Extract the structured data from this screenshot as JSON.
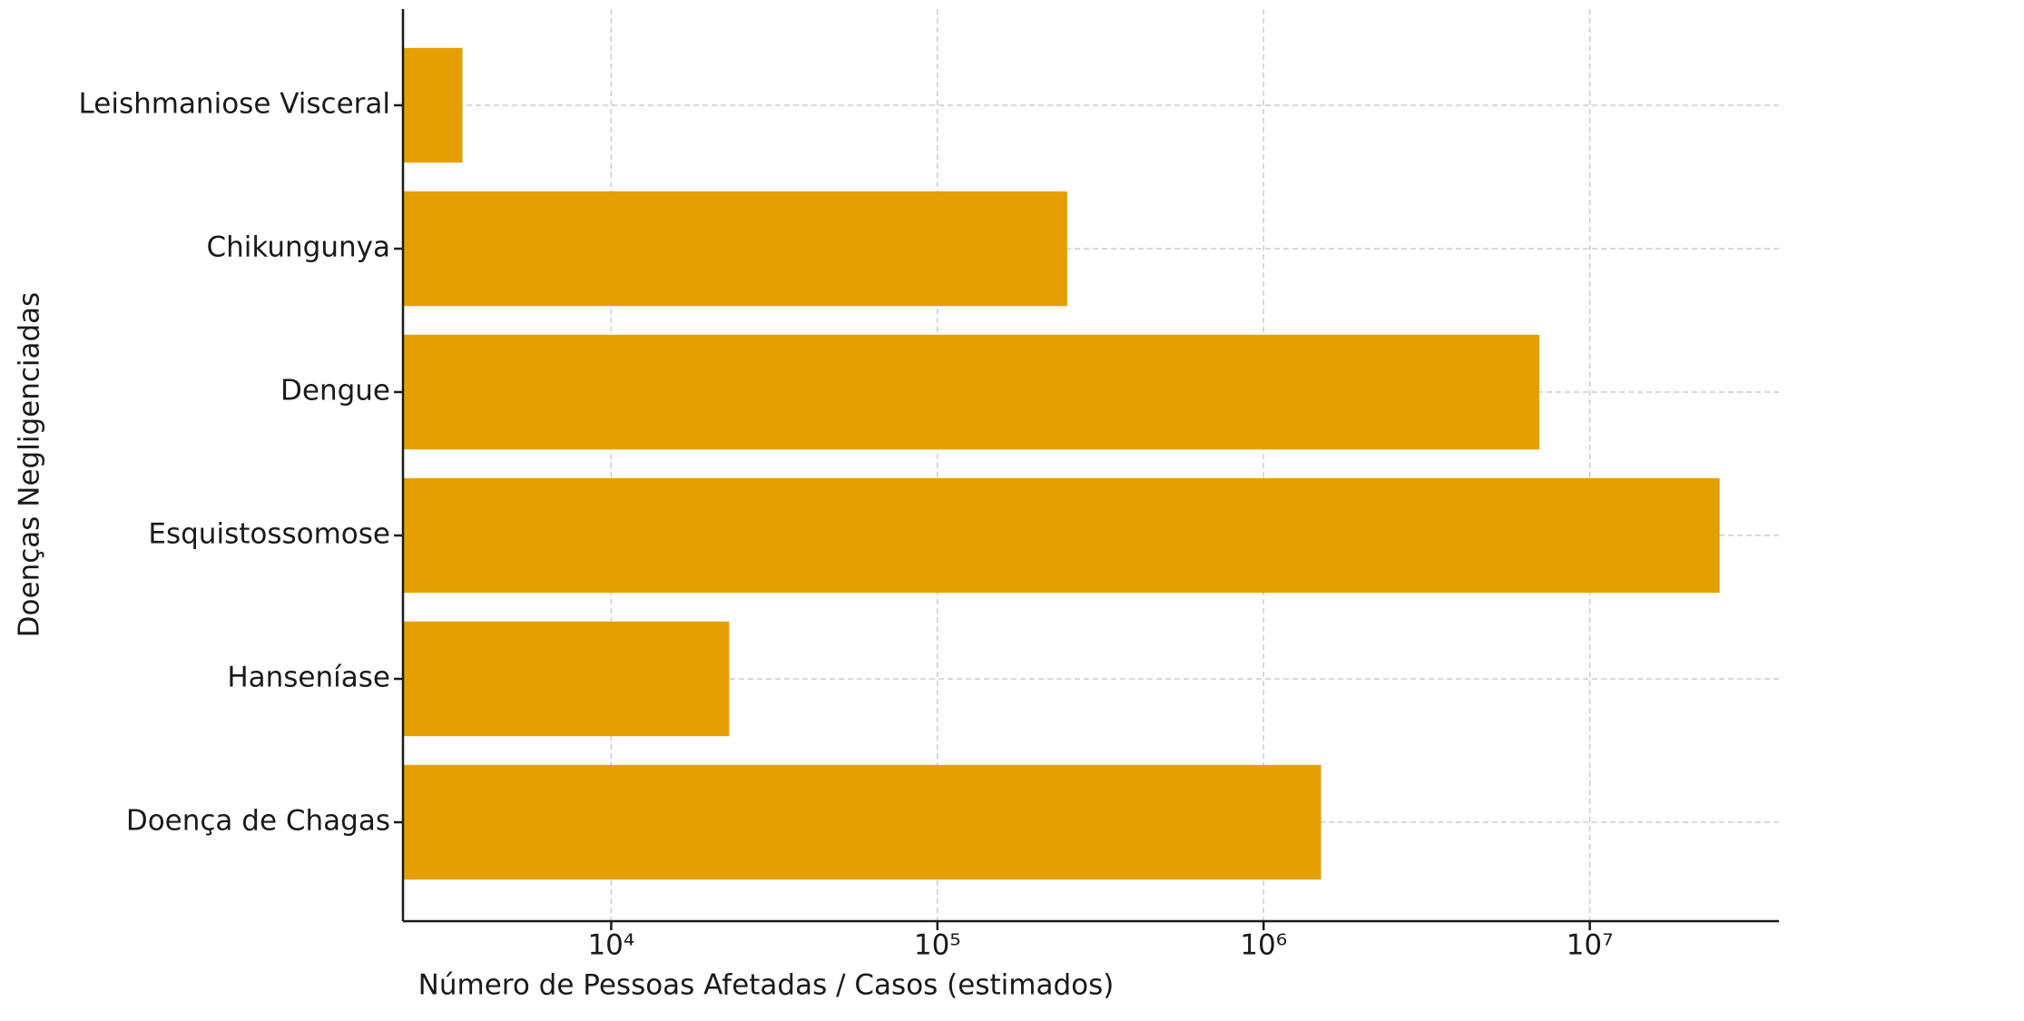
{
  "chart_data": {
    "type": "barh",
    "xlabel": "Número de Pessoas Afetadas / Casos (estimados)",
    "ylabel": "Doenças Negligenciadas",
    "categories": [
      "Doença de Chagas",
      "Hanseníase",
      "Esquistossomose",
      "Dengue",
      "Chikungunya",
      "Leishmaniose Visceral"
    ],
    "values": [
      1500000,
      23000,
      25000000,
      7000000,
      250000,
      3500
    ],
    "color": "#e69f00",
    "xscale": "log",
    "xlim": [
      2300,
      38000000
    ],
    "xticks": [
      {
        "value": 10000,
        "label": "10⁴"
      },
      {
        "value": 100000,
        "label": "10⁵"
      },
      {
        "value": 1000000,
        "label": "10⁶"
      },
      {
        "value": 10000000,
        "label": "10⁷"
      }
    ],
    "grid": true
  }
}
